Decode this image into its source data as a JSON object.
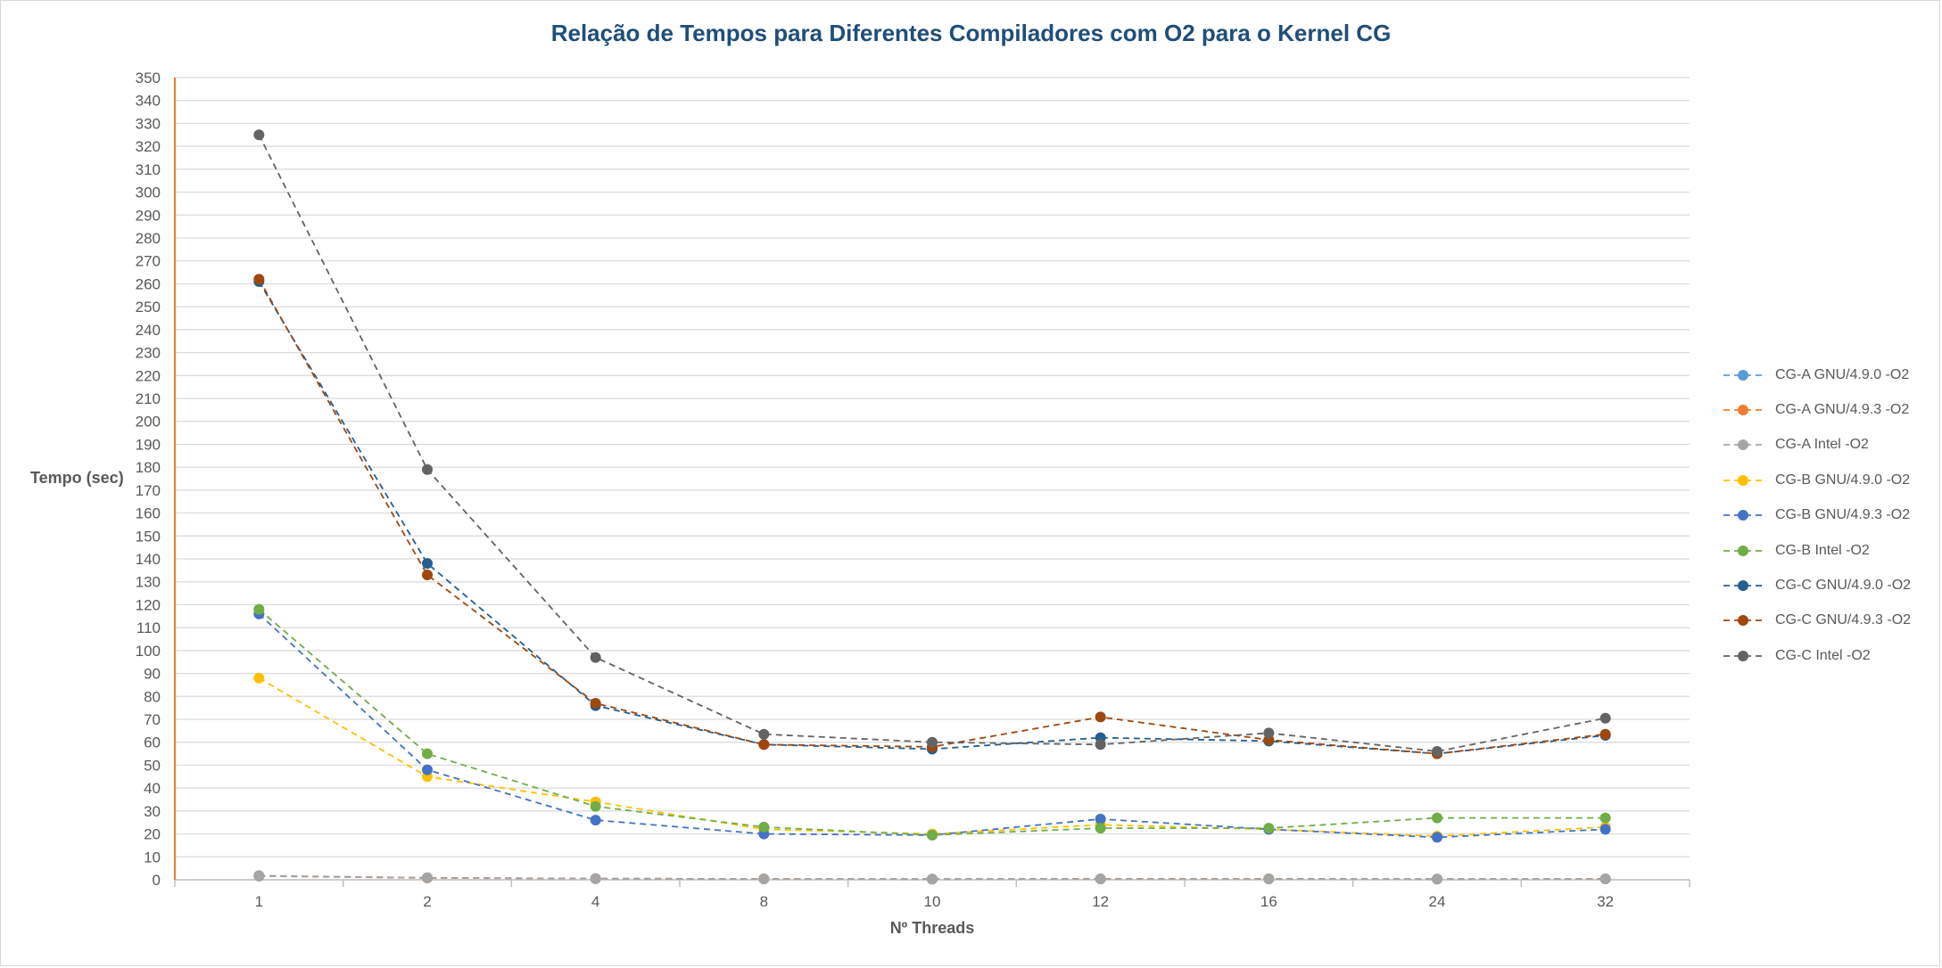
{
  "chart_data": {
    "type": "line",
    "title": "Relação de Tempos para Diferentes Compiladores com O2 para o Kernel CG",
    "xlabel": "Nº Threads",
    "ylabel": "Tempo (sec)",
    "categories": [
      "1",
      "2",
      "4",
      "8",
      "10",
      "12",
      "16",
      "24",
      "32"
    ],
    "ylim": [
      0,
      350
    ],
    "ytick_step": 10,
    "grid": true,
    "legend_position": "right",
    "line_style": "dashed",
    "series": [
      {
        "name": "CG-A GNU/4.9.0 -O2",
        "color": "#5b9bd5",
        "values": [
          1.6,
          0.8,
          0.5,
          0.4,
          0.3,
          0.4,
          0.4,
          0.3,
          0.4
        ]
      },
      {
        "name": "CG-A GNU/4.9.3 -O2",
        "color": "#ed7d31",
        "values": [
          1.7,
          0.8,
          0.5,
          0.4,
          0.3,
          0.4,
          0.4,
          0.3,
          0.4
        ]
      },
      {
        "name": "CG-A Intel -O2",
        "color": "#a5a5a5",
        "values": [
          1.8,
          0.9,
          0.5,
          0.4,
          0.3,
          0.4,
          0.4,
          0.3,
          0.4
        ]
      },
      {
        "name": "CG-B GNU/4.9.0 -O2",
        "color": "#ffc000",
        "values": [
          88,
          45,
          34,
          22,
          20,
          24,
          22,
          19,
          23
        ]
      },
      {
        "name": "CG-B GNU/4.9.3 -O2",
        "color": "#4472c4",
        "values": [
          116,
          48,
          26,
          20,
          19.5,
          26.5,
          22,
          18.5,
          22
        ]
      },
      {
        "name": "CG-B Intel -O2",
        "color": "#70ad47",
        "values": [
          118,
          55,
          32,
          23,
          19.5,
          22.5,
          22.5,
          27,
          27
        ]
      },
      {
        "name": "CG-C GNU/4.9.0 -O2",
        "color": "#255e91",
        "values": [
          261,
          138,
          76,
          59,
          57,
          62,
          60.5,
          55,
          63
        ]
      },
      {
        "name": "CG-C GNU/4.9.3 -O2",
        "color": "#9e480e",
        "values": [
          262,
          133,
          77,
          59,
          58,
          71,
          61,
          55,
          63.5
        ]
      },
      {
        "name": "CG-C Intel -O2",
        "color": "#636363",
        "values": [
          325,
          179,
          97,
          63.5,
          60,
          59,
          64,
          56,
          70.5
        ]
      }
    ]
  }
}
